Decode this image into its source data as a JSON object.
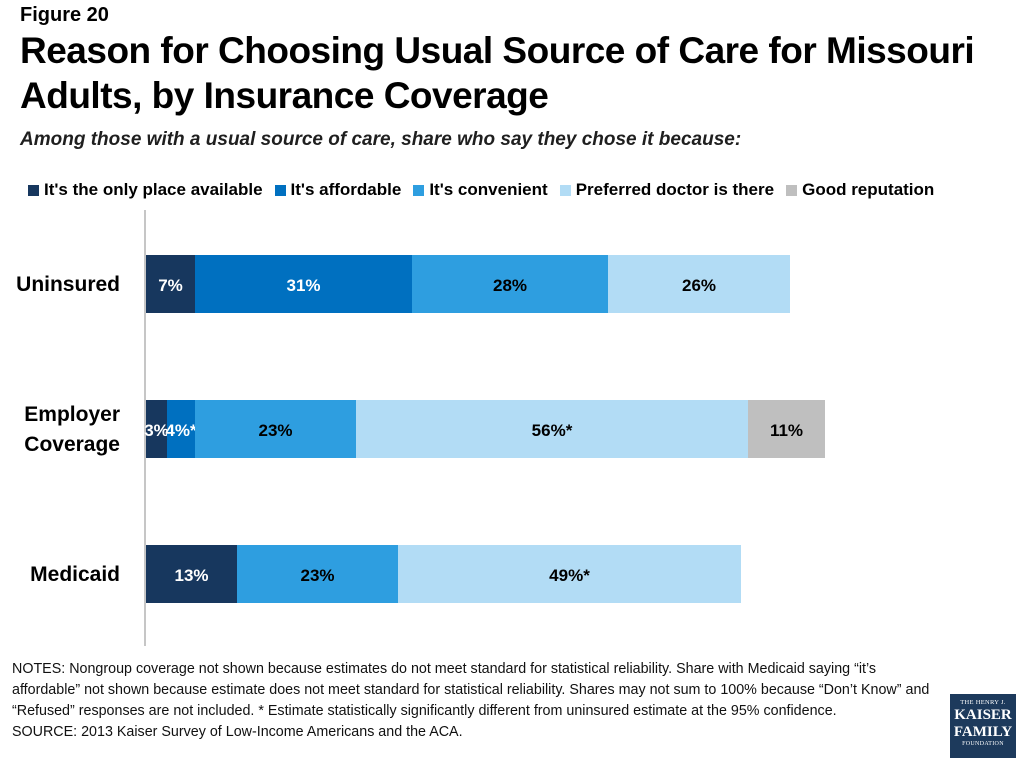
{
  "figure_label": "Figure 20",
  "title": "Reason for Choosing Usual Source of Care for Missouri Adults, by Insurance Coverage",
  "subtitle": "Among those with a usual source of care, share who say they chose it because:",
  "chart_data": {
    "type": "bar",
    "orientation": "horizontal",
    "stacked": true,
    "categories": [
      "Uninsured",
      "Employer Coverage",
      "Medicaid"
    ],
    "legend_position": "top",
    "grid": false,
    "xlim": [
      0,
      100
    ],
    "series": [
      {
        "name": "It's the only place available",
        "color": "#17375e",
        "values": [
          7,
          3,
          13
        ],
        "labels": [
          "7%",
          "3%",
          "13%"
        ]
      },
      {
        "name": "It's affordable",
        "color": "#0070c0",
        "values": [
          31,
          4,
          null
        ],
        "labels": [
          "31%",
          "4%*",
          ""
        ]
      },
      {
        "name": "It's convenient",
        "color": "#2e9ee0",
        "values": [
          28,
          23,
          23
        ],
        "labels": [
          "28%",
          "23%",
          "23%"
        ]
      },
      {
        "name": "Preferred doctor is there",
        "color": "#b2dcf5",
        "values": [
          26,
          56,
          49
        ],
        "labels": [
          "26%",
          "56%*",
          "49%*"
        ]
      },
      {
        "name": "Good reputation",
        "color": "#bfbfbf",
        "values": [
          null,
          11,
          null
        ],
        "labels": [
          "",
          "11%",
          ""
        ]
      }
    ]
  },
  "notes": "NOTES: Nongroup coverage not shown because estimates do not meet standard for statistical reliability. Share with Medicaid saying “it’s affordable” not shown because estimate does not meet standard for statistical reliability. Shares may not sum to 100% because “Don’t Know” and “Refused” responses are not included. * Estimate statistically significantly different from uninsured estimate at the 95% confidence.",
  "source": "SOURCE: 2013 Kaiser Survey of Low-Income Americans and the ACA.",
  "logo": {
    "line1": "THE HENRY J.",
    "line2": "KAISER",
    "line3": "FAMILY",
    "line4": "FOUNDATION"
  }
}
